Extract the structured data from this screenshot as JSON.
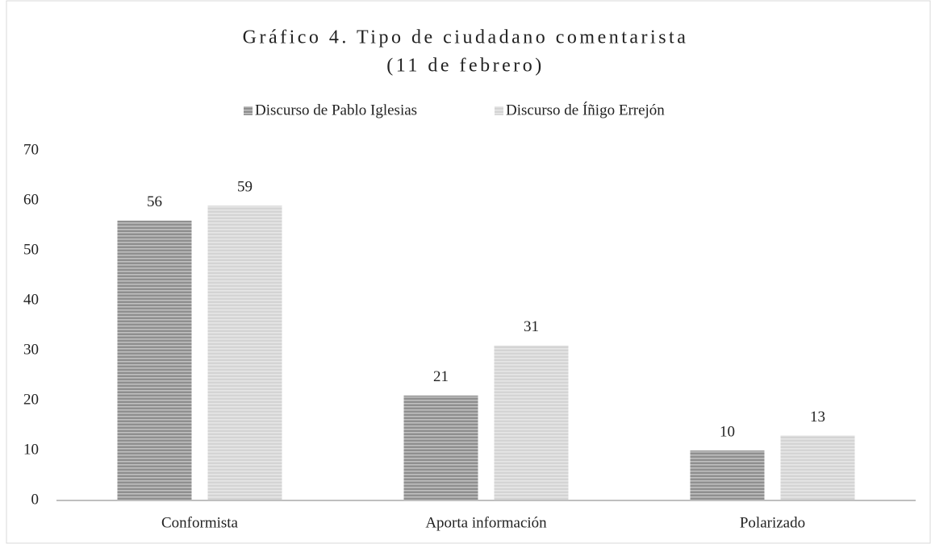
{
  "chart_data": {
    "type": "bar",
    "title": [
      "Gráfico 4. Tipo de ciudadano comentarista",
      "(11 de febrero)"
    ],
    "categories": [
      "Conformista",
      "Aporta información",
      "Polarizado"
    ],
    "series": [
      {
        "name": "Discurso de Pablo Iglesias",
        "color": "#8f8f8f",
        "values": [
          56,
          21,
          10
        ]
      },
      {
        "name": "Discurso de Íñigo Errejón",
        "color": "#d4d4d4",
        "values": [
          59,
          31,
          13
        ]
      }
    ],
    "ylim": [
      0,
      70
    ],
    "yticks": [
      0,
      10,
      20,
      30,
      40,
      50,
      60,
      70
    ],
    "grid": false,
    "legend": "top"
  }
}
